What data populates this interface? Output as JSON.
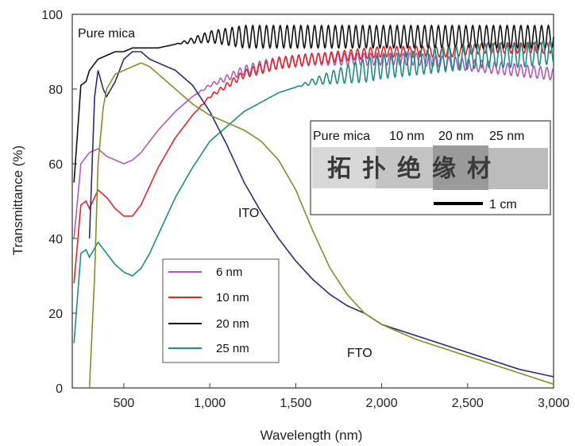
{
  "chart_data": {
    "type": "line",
    "title": "",
    "xlabel": "Wavelength (nm)",
    "ylabel": "Transmittance (%)",
    "xlim": [
      200,
      3000
    ],
    "ylim": [
      0,
      100
    ],
    "xticks": [
      500,
      1000,
      1500,
      2000,
      2500,
      3000
    ],
    "xtick_labels": [
      "500",
      "1,000",
      "1,500",
      "2,000",
      "2,500",
      "3,000"
    ],
    "yticks": [
      0,
      20,
      40,
      60,
      80,
      100
    ],
    "ytick_labels": [
      "0",
      "20",
      "40",
      "60",
      "80",
      "100"
    ],
    "grid": false,
    "legend": {
      "placement": "lower-left",
      "entries": [
        {
          "label": "6 nm",
          "color": "#b05ab8"
        },
        {
          "label": "10 nm",
          "color": "#e0262b"
        },
        {
          "label": "20 nm",
          "color": "#111111"
        },
        {
          "label": "25 nm",
          "color": "#1f8a86"
        }
      ]
    },
    "series": [
      {
        "name": "6 nm",
        "color": "#b05ab8",
        "x": [
          210,
          250,
          300,
          350,
          400,
          450,
          500,
          550,
          600,
          650,
          700,
          800,
          900,
          1000,
          1200,
          1400,
          1600,
          1800,
          2000,
          2200,
          2400,
          2600,
          2800,
          3000
        ],
        "y": [
          40,
          60,
          63,
          64,
          62,
          61,
          60,
          61,
          63,
          66,
          69,
          74,
          78,
          81,
          85,
          87,
          88,
          88,
          88,
          88,
          87,
          86,
          85,
          84
        ]
      },
      {
        "name": "10 nm",
        "color": "#e0262b",
        "x": [
          210,
          250,
          280,
          300,
          350,
          400,
          450,
          500,
          550,
          600,
          650,
          700,
          800,
          900,
          1000,
          1200,
          1400,
          1600,
          1800,
          2000,
          2200,
          2400,
          2600,
          2800,
          3000
        ],
        "y": [
          28,
          49,
          50,
          48,
          53,
          51,
          48,
          46,
          46,
          49,
          54,
          59,
          67,
          73,
          78,
          84,
          87,
          88,
          89,
          90,
          90,
          90,
          91,
          91,
          91
        ]
      },
      {
        "name": "20 nm",
        "color": "#111111",
        "x": [
          210,
          250,
          280,
          300,
          350,
          400,
          450,
          500,
          550,
          600,
          700,
          800,
          900,
          1000,
          1200,
          1400,
          1600,
          1800,
          2000,
          2200,
          2400,
          2600,
          2800,
          3000
        ],
        "y": [
          55,
          81,
          82,
          85,
          88,
          89,
          90,
          90,
          91,
          91,
          91,
          92,
          93,
          94,
          94,
          94,
          94,
          94,
          94,
          94,
          94,
          94,
          94,
          94
        ]
      },
      {
        "name": "25 nm",
        "color": "#1f8a86",
        "x": [
          210,
          250,
          280,
          300,
          350,
          400,
          450,
          500,
          550,
          600,
          650,
          700,
          800,
          900,
          1000,
          1200,
          1400,
          1600,
          1800,
          2000,
          2200,
          2400,
          2600,
          2800,
          3000
        ],
        "y": [
          12,
          36,
          37,
          35,
          39,
          36,
          33,
          31,
          30,
          32,
          36,
          41,
          51,
          59,
          66,
          74,
          79,
          82,
          84,
          86,
          87,
          88,
          89,
          89,
          90
        ]
      },
      {
        "name": "",
        "color": "#2a2d6e",
        "x": [
          300,
          330,
          350,
          380,
          400,
          450,
          500,
          550,
          600,
          650,
          700,
          750,
          800,
          900,
          1000,
          1100,
          1200,
          1300,
          1400,
          1500,
          1600,
          1700,
          1800,
          1900,
          2000,
          2200,
          2400,
          2600,
          2800,
          3000
        ],
        "y": [
          40,
          78,
          85,
          80,
          78,
          82,
          88,
          90,
          90,
          88,
          87,
          86,
          85,
          81,
          74,
          65,
          55,
          47,
          40,
          34,
          29,
          25,
          22,
          20,
          17,
          14,
          11,
          8,
          5,
          3
        ]
      },
      {
        "name": "",
        "color": "#8a8a2a",
        "x": [
          300,
          330,
          350,
          380,
          400,
          450,
          500,
          550,
          600,
          650,
          700,
          800,
          900,
          1000,
          1100,
          1200,
          1300,
          1400,
          1500,
          1600,
          1700,
          1800,
          1900,
          2000,
          2200,
          2400,
          2600,
          2800,
          3000
        ],
        "y": [
          0,
          30,
          60,
          75,
          80,
          84,
          85,
          86,
          87,
          86,
          84,
          80,
          76,
          73,
          71,
          69,
          66,
          61,
          53,
          42,
          32,
          25,
          20,
          17,
          13,
          10,
          7,
          4,
          1
        ]
      }
    ],
    "annotations": [
      {
        "text": "Pure mica",
        "x": 220,
        "y": 96
      },
      {
        "text": "ITO",
        "x": 1220,
        "y": 46
      },
      {
        "text": "FTO",
        "x": 2000,
        "y": 9
      }
    ],
    "inset": {
      "labels": [
        "Pure mica",
        "10 nm",
        "20 nm",
        "25 nm"
      ],
      "characters": "拓扑绝缘材",
      "scale_bar_label": "1 cm"
    }
  }
}
